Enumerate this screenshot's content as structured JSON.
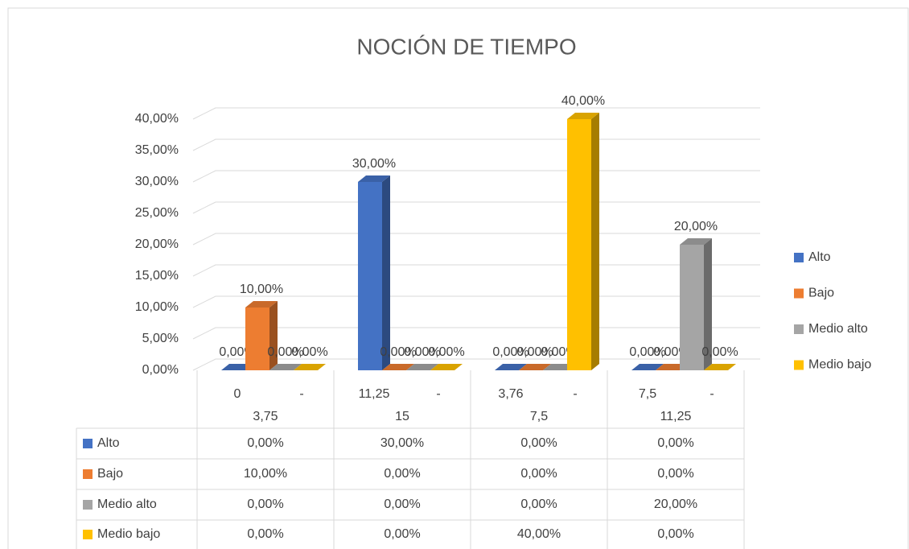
{
  "chart_data": {
    "type": "bar3d",
    "title": "NOCIÓN DE TIEMPO",
    "categories": [
      "0 - 3,75",
      "11,25 - 15",
      "3,76 - 7,5",
      "7,5 - 11,25"
    ],
    "series": [
      {
        "name": "Alto",
        "color": "#4472c4",
        "values": [
          0,
          30,
          0,
          0
        ],
        "value_labels": [
          "0,00%",
          "30,00%",
          "0,00%",
          "0,00%"
        ]
      },
      {
        "name": "Bajo",
        "color": "#ed7d31",
        "values": [
          10,
          0,
          0,
          0
        ],
        "value_labels": [
          "10,00%",
          "0,00%",
          "0,00%",
          "0,00%"
        ]
      },
      {
        "name": "Medio alto",
        "color": "#a5a5a5",
        "values": [
          0,
          0,
          0,
          20
        ],
        "value_labels": [
          "0,00%",
          "0,00%",
          "0,00%",
          "20,00%"
        ]
      },
      {
        "name": "Medio bajo",
        "color": "#ffc000",
        "values": [
          0,
          0,
          40,
          0
        ],
        "value_labels": [
          "0,00%",
          "0,00%",
          "40,00%",
          "0,00%"
        ]
      }
    ],
    "ylim": [
      0,
      40
    ],
    "yticks": [
      {
        "value": 0,
        "label": "0,00%"
      },
      {
        "value": 5,
        "label": "5,00%"
      },
      {
        "value": 10,
        "label": "10,00%"
      },
      {
        "value": 15,
        "label": "15,00%"
      },
      {
        "value": 20,
        "label": "20,00%"
      },
      {
        "value": 25,
        "label": "25,00%"
      },
      {
        "value": 30,
        "label": "30,00%"
      },
      {
        "value": 35,
        "label": "35,00%"
      },
      {
        "value": 40,
        "label": "40,00%"
      }
    ],
    "grid": true,
    "legend": "right",
    "data_table": true
  }
}
